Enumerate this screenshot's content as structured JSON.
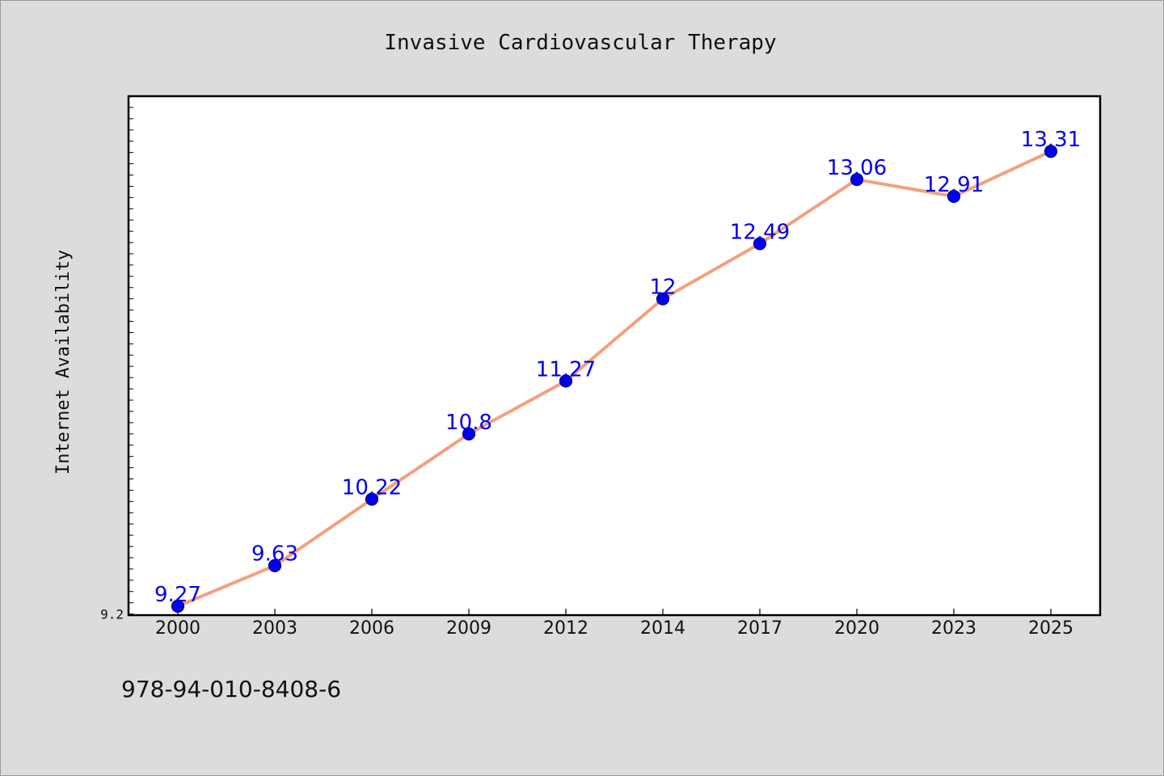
{
  "chart_data": {
    "type": "line",
    "title": "Invasive Cardiovascular Therapy",
    "xlabel": "",
    "ylabel": "Internet Availability",
    "categories": [
      "2000",
      "2003",
      "2006",
      "2009",
      "2012",
      "2014",
      "2017",
      "2020",
      "2023",
      "2025"
    ],
    "series": [
      {
        "values": [
          9.27,
          9.63,
          10.22,
          10.8,
          11.27,
          12,
          12.49,
          13.06,
          12.91,
          13.31
        ],
        "labels": [
          "9.27",
          "9.63",
          "10.22",
          "10.8",
          "11.27",
          "12",
          "12.49",
          "13.06",
          "12.91",
          "13.31"
        ]
      }
    ],
    "ylim": [
      9.19,
      13.8
    ],
    "y_tick_labels": [
      {
        "value": 9.2,
        "label": "9.2"
      }
    ],
    "y_minor_step": 0.1,
    "grid": false,
    "legend": "none",
    "colors": {
      "line": "#f4a07c",
      "marker": "#0000ee",
      "marker_edge": "#000080",
      "data_label": "#0000ee",
      "background": "#dcdcdc",
      "plot_background": "#ffffff"
    }
  },
  "footer": {
    "text": "978-94-010-8408-6"
  }
}
